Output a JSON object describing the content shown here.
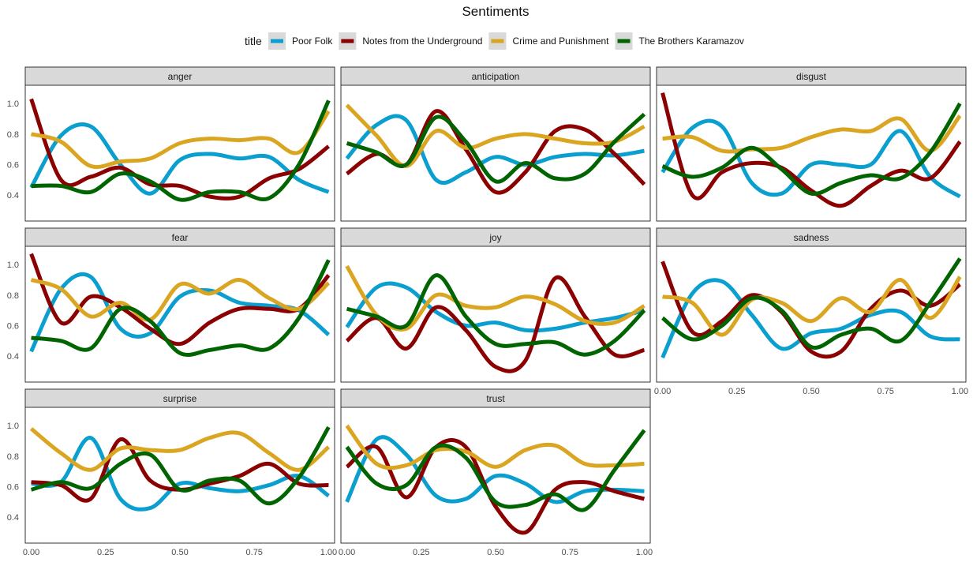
{
  "chart_data": {
    "type": "line",
    "title": "Sentiments",
    "legend": {
      "title": "title",
      "position": "top",
      "entries": [
        {
          "name": "Poor Folk",
          "color": "#0a9fcf"
        },
        {
          "name": "Notes from the Underground",
          "color": "#8b0000"
        },
        {
          "name": "Crime and Punishment",
          "color": "#daa520"
        },
        {
          "name": "The Brothers Karamazov",
          "color": "#006400"
        }
      ]
    },
    "x_ticks": [
      "0.00",
      "0.25",
      "0.50",
      "0.75",
      "1.00"
    ],
    "y_ticks": [
      "0.4",
      "0.6",
      "0.8",
      "1.0"
    ],
    "xlim": [
      -0.02,
      1.02
    ],
    "ylim": [
      0.23,
      1.12
    ],
    "grid": false,
    "x": [
      0,
      0.1,
      0.2,
      0.3,
      0.4,
      0.5,
      0.6,
      0.7,
      0.8,
      0.9,
      1.0
    ],
    "panels": [
      {
        "label": "anger",
        "series": [
          [
            0.45,
            0.79,
            0.85,
            0.6,
            0.41,
            0.63,
            0.67,
            0.64,
            0.65,
            0.5,
            0.42
          ],
          [
            1.03,
            0.5,
            0.52,
            0.58,
            0.47,
            0.46,
            0.39,
            0.39,
            0.51,
            0.57,
            0.72
          ],
          [
            0.8,
            0.75,
            0.59,
            0.62,
            0.64,
            0.74,
            0.77,
            0.76,
            0.77,
            0.68,
            0.95
          ],
          [
            0.46,
            0.46,
            0.42,
            0.54,
            0.49,
            0.37,
            0.42,
            0.42,
            0.38,
            0.6,
            1.02
          ]
        ]
      },
      {
        "label": "anticipation",
        "series": [
          [
            0.64,
            0.86,
            0.89,
            0.5,
            0.55,
            0.65,
            0.6,
            0.65,
            0.67,
            0.66,
            0.69
          ],
          [
            0.54,
            0.67,
            0.6,
            0.95,
            0.7,
            0.42,
            0.55,
            0.82,
            0.83,
            0.67,
            0.47
          ],
          [
            0.99,
            0.79,
            0.59,
            0.82,
            0.71,
            0.77,
            0.8,
            0.77,
            0.74,
            0.75,
            0.85
          ],
          [
            0.74,
            0.68,
            0.6,
            0.91,
            0.75,
            0.49,
            0.61,
            0.51,
            0.54,
            0.75,
            0.93
          ]
        ]
      },
      {
        "label": "disgust",
        "series": [
          [
            0.55,
            0.84,
            0.85,
            0.48,
            0.41,
            0.6,
            0.6,
            0.6,
            0.82,
            0.52,
            0.39
          ],
          [
            1.07,
            0.4,
            0.55,
            0.61,
            0.58,
            0.43,
            0.33,
            0.46,
            0.56,
            0.51,
            0.75
          ],
          [
            0.77,
            0.78,
            0.69,
            0.7,
            0.71,
            0.78,
            0.83,
            0.82,
            0.9,
            0.69,
            0.92
          ],
          [
            0.59,
            0.52,
            0.58,
            0.71,
            0.57,
            0.41,
            0.48,
            0.53,
            0.51,
            0.68,
            1.0
          ]
        ]
      },
      {
        "label": "fear",
        "series": [
          [
            0.43,
            0.84,
            0.92,
            0.58,
            0.55,
            0.79,
            0.83,
            0.75,
            0.73,
            0.7,
            0.54
          ],
          [
            1.07,
            0.62,
            0.79,
            0.72,
            0.58,
            0.48,
            0.62,
            0.71,
            0.71,
            0.71,
            0.93
          ],
          [
            0.9,
            0.84,
            0.66,
            0.75,
            0.64,
            0.87,
            0.81,
            0.9,
            0.78,
            0.71,
            0.88
          ],
          [
            0.52,
            0.5,
            0.45,
            0.71,
            0.63,
            0.42,
            0.44,
            0.47,
            0.45,
            0.65,
            1.03
          ]
        ]
      },
      {
        "label": "joy",
        "series": [
          [
            0.59,
            0.85,
            0.85,
            0.69,
            0.6,
            0.62,
            0.57,
            0.58,
            0.62,
            0.65,
            0.7
          ],
          [
            0.5,
            0.65,
            0.45,
            0.72,
            0.57,
            0.33,
            0.37,
            0.91,
            0.66,
            0.41,
            0.44
          ],
          [
            0.99,
            0.67,
            0.58,
            0.8,
            0.73,
            0.72,
            0.79,
            0.74,
            0.63,
            0.62,
            0.73
          ],
          [
            0.71,
            0.66,
            0.6,
            0.93,
            0.66,
            0.48,
            0.48,
            0.49,
            0.41,
            0.5,
            0.7
          ]
        ]
      },
      {
        "label": "sadness",
        "series": [
          [
            0.39,
            0.81,
            0.89,
            0.67,
            0.45,
            0.55,
            0.58,
            0.67,
            0.69,
            0.53,
            0.51
          ],
          [
            1.02,
            0.56,
            0.63,
            0.8,
            0.69,
            0.43,
            0.43,
            0.71,
            0.83,
            0.73,
            0.87
          ],
          [
            0.79,
            0.75,
            0.54,
            0.77,
            0.75,
            0.63,
            0.78,
            0.69,
            0.9,
            0.65,
            0.92
          ],
          [
            0.65,
            0.51,
            0.6,
            0.78,
            0.7,
            0.46,
            0.54,
            0.58,
            0.5,
            0.75,
            1.04
          ]
        ]
      },
      {
        "label": "surprise",
        "series": [
          [
            0.62,
            0.63,
            0.92,
            0.52,
            0.46,
            0.62,
            0.59,
            0.57,
            0.61,
            0.67,
            0.54
          ],
          [
            0.63,
            0.61,
            0.52,
            0.91,
            0.64,
            0.58,
            0.62,
            0.67,
            0.75,
            0.62,
            0.61
          ],
          [
            0.98,
            0.82,
            0.71,
            0.85,
            0.84,
            0.84,
            0.92,
            0.95,
            0.82,
            0.71,
            0.86
          ],
          [
            0.58,
            0.63,
            0.59,
            0.75,
            0.81,
            0.58,
            0.64,
            0.64,
            0.49,
            0.66,
            0.99
          ]
        ]
      },
      {
        "label": "trust",
        "series": [
          [
            0.5,
            0.91,
            0.81,
            0.54,
            0.52,
            0.67,
            0.62,
            0.5,
            0.57,
            0.58,
            0.57
          ],
          [
            0.73,
            0.86,
            0.53,
            0.86,
            0.86,
            0.47,
            0.3,
            0.58,
            0.63,
            0.57,
            0.52
          ],
          [
            1.0,
            0.75,
            0.74,
            0.84,
            0.83,
            0.73,
            0.84,
            0.87,
            0.75,
            0.74,
            0.75
          ],
          [
            0.86,
            0.62,
            0.61,
            0.86,
            0.79,
            0.5,
            0.48,
            0.55,
            0.45,
            0.71,
            0.97
          ]
        ]
      }
    ]
  }
}
